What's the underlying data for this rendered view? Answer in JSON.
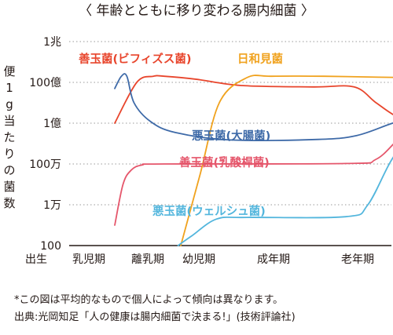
{
  "title": "〈 年齢とともに移り変わる腸内細菌 〉",
  "ylabel": "便1g当たりの菌数",
  "notes": [
    "*この図は平均的なもので個人によって傾向は異なります。",
    "出典:光岡知足「人の健康は腸内細菌で決まる!」(技術評論社)"
  ],
  "chart_data": {
    "type": "line",
    "title": "〈 年齢とともに移り変わる腸内細菌 〉",
    "ylabel": "便1g当たりの菌数",
    "xlabel": "",
    "y_scale": "log",
    "y_ticks": [
      {
        "label": "1兆",
        "value": 1000000000000.0
      },
      {
        "label": "100億",
        "value": 10000000000.0
      },
      {
        "label": "1億",
        "value": 100000000.0
      },
      {
        "label": "100万",
        "value": 1000000.0
      },
      {
        "label": "1万",
        "value": 10000.0
      },
      {
        "label": "100",
        "value": 100.0
      }
    ],
    "ylim": [
      100,
      1000000000000.0
    ],
    "x_ticks": [
      "出生",
      "乳児期",
      "離乳期",
      "幼児期",
      "成年期",
      "老年期"
    ],
    "grid": "horizontal dotted",
    "legend": "inline labels",
    "series": [
      {
        "name": "善玉菌(ビフィズス菌)",
        "color": "#e8452c",
        "stage_values": [
          [
            0.7,
            100000000.0
          ],
          [
            1.1,
            10000000000.0
          ],
          [
            1.4,
            20000000000.0
          ],
          [
            1.6,
            20000000000.0
          ],
          [
            2.2,
            14000000000.0
          ],
          [
            3.0,
            7000000000.0
          ],
          [
            4.3,
            6000000000.0
          ],
          [
            5.05,
            6000000000.0
          ],
          [
            5.45,
            1000000000.0
          ],
          [
            5.85,
            200000000.0
          ],
          [
            6.3,
            120000000.0
          ]
        ]
      },
      {
        "name": "日和見菌",
        "color": "#f0a21e",
        "stage_values": [
          [
            1.9,
            100
          ],
          [
            2.25,
            300000.0
          ],
          [
            2.6,
            1000000000.0
          ],
          [
            3.1,
            17000000000.0
          ],
          [
            3.55,
            20000000000.0
          ],
          [
            4.5,
            20000000000.0
          ],
          [
            5.5,
            18000000000.0
          ],
          [
            6.35,
            17000000000.0
          ]
        ]
      },
      {
        "name": "悪玉菌(大腸菌)",
        "color": "#3e6aa8",
        "stage_values": [
          [
            0.7,
            5000000000.0
          ],
          [
            0.82,
            20000000000.0
          ],
          [
            0.92,
            20000000000.0
          ],
          [
            1.05,
            1000000000.0
          ],
          [
            1.35,
            120000000.0
          ],
          [
            1.8,
            35000000.0
          ],
          [
            2.8,
            15000000.0
          ],
          [
            4.4,
            16000000.0
          ],
          [
            5.1,
            25000000.0
          ],
          [
            5.75,
            100000000.0
          ],
          [
            6.35,
            300000000.0
          ]
        ]
      },
      {
        "name": "善玉菌(乳酸桿菌)",
        "color": "#e5566b",
        "stage_values": [
          [
            0.7,
            1000.0
          ],
          [
            0.85,
            100000.0
          ],
          [
            1.0,
            500000.0
          ],
          [
            1.2,
            900000.0
          ],
          [
            1.6,
            1000000.0
          ],
          [
            4.9,
            1050000.0
          ],
          [
            5.45,
            1700000.0
          ],
          [
            5.9,
            20000000.0
          ],
          [
            6.35,
            80000000.0
          ]
        ]
      },
      {
        "name": "悪玉菌(ウェルシュ菌)",
        "color": "#53b6dd",
        "stage_values": [
          [
            1.85,
            100
          ],
          [
            2.1,
            300.0
          ],
          [
            2.55,
            2000.0
          ],
          [
            3.1,
            2400.0
          ],
          [
            4.9,
            2600.0
          ],
          [
            5.3,
            10000.0
          ],
          [
            5.8,
            3000000.0
          ],
          [
            6.35,
            50000000.0
          ]
        ]
      }
    ]
  }
}
